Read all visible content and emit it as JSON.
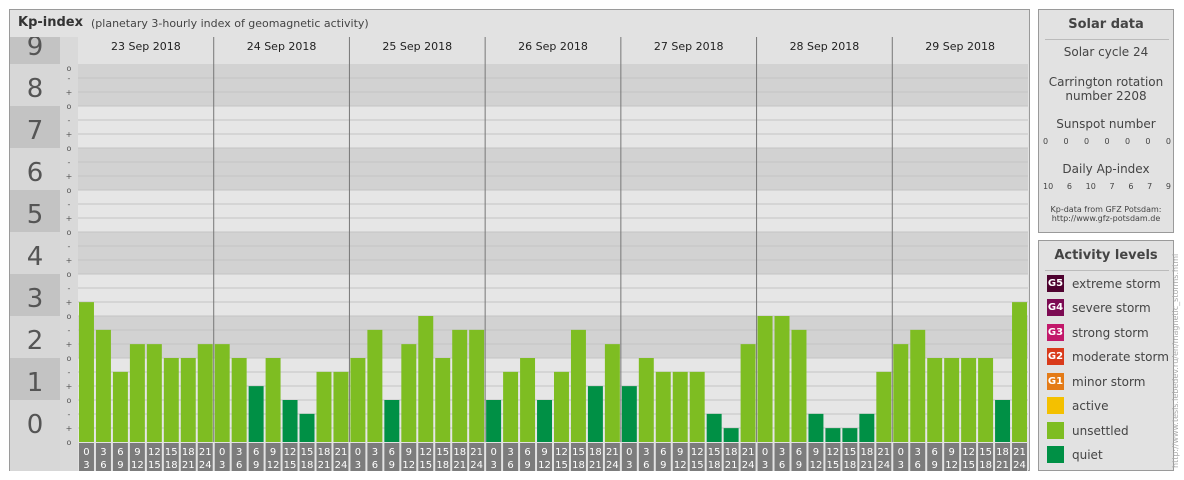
{
  "header": {
    "title": "Kp-index",
    "subtitle": "(planetary 3-hourly index of geomagnetic activity)"
  },
  "chart_data": {
    "type": "bar",
    "title": "Kp-index",
    "subtitle": "(planetary 3-hourly index of geomagnetic activity)",
    "ylim": [
      0,
      9
    ],
    "y_major_ticks": [
      "9",
      "8",
      "7",
      "6",
      "5",
      "4",
      "3",
      "2",
      "1",
      "0"
    ],
    "y_minor_ticks": [
      "o",
      "-",
      "+",
      "o",
      "-",
      "+",
      "o",
      "-",
      "+",
      "o",
      "-",
      "+",
      "o",
      "-",
      "+",
      "o",
      "-",
      "+",
      "o",
      "-",
      "+",
      "o",
      "-",
      "+",
      "o",
      "-",
      "+",
      "o"
    ],
    "days": [
      "23 Sep 2018",
      "24 Sep 2018",
      "25 Sep 2018",
      "26 Sep 2018",
      "27 Sep 2018",
      "28 Sep 2018",
      "29 Sep 2018"
    ],
    "intervals": [
      [
        "0",
        "3"
      ],
      [
        "3",
        "6"
      ],
      [
        "6",
        "9"
      ],
      [
        "9",
        "12"
      ],
      [
        "12",
        "15"
      ],
      [
        "15",
        "18"
      ],
      [
        "18",
        "21"
      ],
      [
        "21",
        "24"
      ]
    ],
    "values": [
      [
        3.33,
        2.67,
        1.67,
        2.33,
        2.33,
        2.0,
        2.0,
        2.33
      ],
      [
        2.33,
        2.0,
        1.33,
        2.0,
        1.0,
        0.67,
        1.67,
        1.67
      ],
      [
        2.0,
        2.67,
        1.0,
        2.33,
        3.0,
        2.0,
        2.67,
        2.67
      ],
      [
        1.0,
        1.67,
        2.0,
        1.0,
        1.67,
        2.67,
        1.33,
        2.33
      ],
      [
        1.33,
        2.0,
        1.67,
        1.67,
        1.67,
        0.67,
        0.33,
        2.33
      ],
      [
        3.0,
        3.0,
        2.67,
        0.67,
        0.33,
        0.33,
        0.67,
        1.67
      ],
      [
        2.33,
        2.67,
        2.0,
        2.0,
        2.0,
        2.0,
        1.0,
        3.33
      ]
    ],
    "colors": {
      "quiet": "#009045",
      "unsettled": "#7ebd22"
    },
    "grid": true
  },
  "solar": {
    "title": "Solar data",
    "cycle": "Solar cycle 24",
    "carrington_1": "Carrington rotation",
    "carrington_2": "number 2208",
    "sunspot_label": "Sunspot number",
    "sunspot": [
      "0",
      "0",
      "0",
      "0",
      "0",
      "0",
      "0"
    ],
    "ap_label": "Daily Ap-index",
    "ap": [
      "10",
      "6",
      "10",
      "7",
      "6",
      "7",
      "9"
    ],
    "source_1": "Kp-data from GFZ Potsdam:",
    "source_2": "http://www.gfz-potsdam.de"
  },
  "activity": {
    "title": "Activity levels",
    "levels": [
      {
        "code": "G5",
        "label": "extreme storm",
        "color": "#4f0330"
      },
      {
        "code": "G4",
        "label": "severe storm",
        "color": "#7c0b53"
      },
      {
        "code": "G3",
        "label": "strong storm",
        "color": "#c2186a"
      },
      {
        "code": "G2",
        "label": "moderate storm",
        "color": "#d93a1a"
      },
      {
        "code": "G1",
        "label": "minor storm",
        "color": "#e47b17"
      },
      {
        "code": "",
        "label": "active",
        "color": "#f4c000"
      },
      {
        "code": "",
        "label": "unsettled",
        "color": "#7ebd22"
      },
      {
        "code": "",
        "label": "quiet",
        "color": "#009045"
      }
    ]
  },
  "credit": "http://www.tesis.lebedev.ru/en/magnetic_storms.html"
}
